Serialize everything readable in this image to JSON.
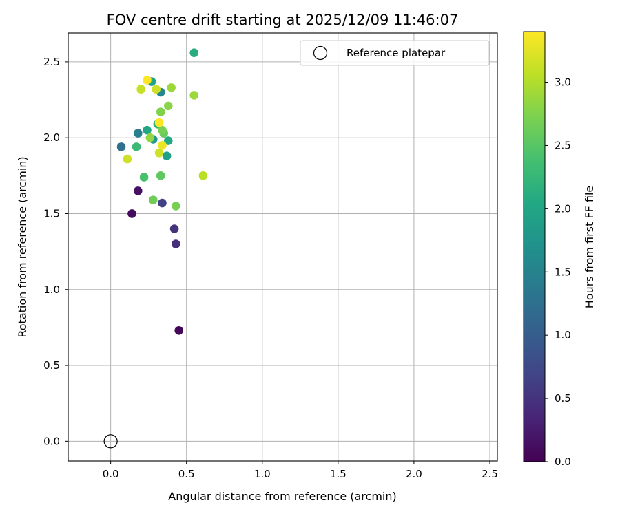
{
  "chart_data": {
    "type": "scatter",
    "title": "FOV centre drift starting at 2025/12/09 11:46:07",
    "xlabel": "Angular distance from reference (arcmin)",
    "ylabel": "Rotation from reference (arcmin)",
    "xlim": [
      -0.28,
      2.55
    ],
    "ylim": [
      -0.13,
      2.69
    ],
    "xticks": [
      0.0,
      0.5,
      1.0,
      1.5,
      2.0,
      2.5
    ],
    "xtick_labels": [
      "0.0",
      "0.5",
      "1.0",
      "1.5",
      "2.0",
      "2.5"
    ],
    "yticks": [
      0.0,
      0.5,
      1.0,
      1.5,
      2.0,
      2.5
    ],
    "ytick_labels": [
      "0.0",
      "0.5",
      "1.0",
      "1.5",
      "2.0",
      "2.5"
    ],
    "grid": true,
    "legend": {
      "position": "top-right",
      "label": "Reference platepar"
    },
    "reference_point": {
      "x": 0.0,
      "y": 0.0
    },
    "colorbar": {
      "label": "Hours from first FF file",
      "range": [
        0.0,
        3.4
      ],
      "ticks": [
        0.0,
        0.5,
        1.0,
        1.5,
        2.0,
        2.5,
        3.0
      ],
      "tick_labels": [
        "0.0",
        "0.5",
        "1.0",
        "1.5",
        "2.0",
        "2.5",
        "3.0"
      ],
      "colormap": "viridis"
    },
    "points": [
      {
        "x": 0.45,
        "y": 0.73,
        "hours": 0.05
      },
      {
        "x": 0.14,
        "y": 1.5,
        "hours": 0.1
      },
      {
        "x": 0.18,
        "y": 1.65,
        "hours": 0.15
      },
      {
        "x": 0.43,
        "y": 1.3,
        "hours": 0.45
      },
      {
        "x": 0.42,
        "y": 1.4,
        "hours": 0.5
      },
      {
        "x": 0.34,
        "y": 1.57,
        "hours": 0.65
      },
      {
        "x": 0.07,
        "y": 1.94,
        "hours": 1.25
      },
      {
        "x": 0.18,
        "y": 2.03,
        "hours": 1.45
      },
      {
        "x": 0.33,
        "y": 2.3,
        "hours": 1.55
      },
      {
        "x": 0.28,
        "y": 1.99,
        "hours": 1.8
      },
      {
        "x": 0.37,
        "y": 1.88,
        "hours": 1.9
      },
      {
        "x": 0.27,
        "y": 2.37,
        "hours": 1.95
      },
      {
        "x": 0.24,
        "y": 2.05,
        "hours": 2.0
      },
      {
        "x": 0.38,
        "y": 1.98,
        "hours": 2.05
      },
      {
        "x": 0.55,
        "y": 2.56,
        "hours": 2.1
      },
      {
        "x": 0.31,
        "y": 2.09,
        "hours": 2.15
      },
      {
        "x": 0.17,
        "y": 1.94,
        "hours": 2.3
      },
      {
        "x": 0.22,
        "y": 1.74,
        "hours": 2.4
      },
      {
        "x": 0.33,
        "y": 1.75,
        "hours": 2.55
      },
      {
        "x": 0.35,
        "y": 2.03,
        "hours": 2.6
      },
      {
        "x": 0.28,
        "y": 1.59,
        "hours": 2.65
      },
      {
        "x": 0.43,
        "y": 1.55,
        "hours": 2.7
      },
      {
        "x": 0.34,
        "y": 2.05,
        "hours": 2.7
      },
      {
        "x": 0.33,
        "y": 2.17,
        "hours": 2.75
      },
      {
        "x": 0.38,
        "y": 2.21,
        "hours": 2.8
      },
      {
        "x": 0.26,
        "y": 2.0,
        "hours": 2.85
      },
      {
        "x": 0.55,
        "y": 2.28,
        "hours": 2.9
      },
      {
        "x": 0.4,
        "y": 2.33,
        "hours": 2.9
      },
      {
        "x": 0.61,
        "y": 1.75,
        "hours": 3.05
      },
      {
        "x": 0.2,
        "y": 2.32,
        "hours": 3.1
      },
      {
        "x": 0.3,
        "y": 2.32,
        "hours": 3.15
      },
      {
        "x": 0.11,
        "y": 1.86,
        "hours": 3.15
      },
      {
        "x": 0.32,
        "y": 1.9,
        "hours": 3.15
      },
      {
        "x": 0.34,
        "y": 1.95,
        "hours": 3.3
      },
      {
        "x": 0.32,
        "y": 2.1,
        "hours": 3.4
      },
      {
        "x": 0.24,
        "y": 2.38,
        "hours": 3.4
      }
    ]
  }
}
